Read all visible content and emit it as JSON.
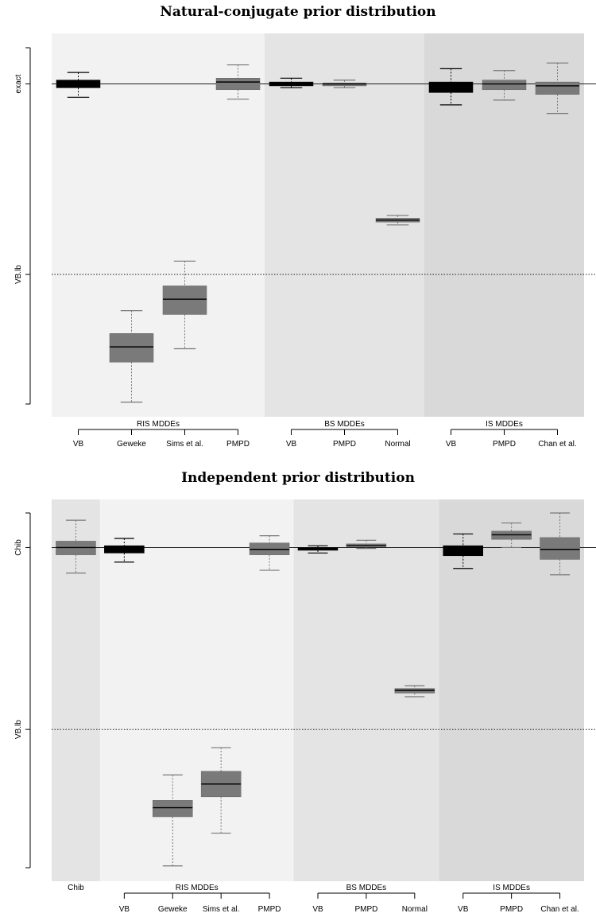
{
  "chart_data": [
    {
      "type": "boxplot",
      "title": "Natural-conjugate prior distribution",
      "y_ticks": [
        {
          "label": "exact",
          "value": 0,
          "line": "solid"
        },
        {
          "label": "VB.lb",
          "value": -1,
          "line": "dotted"
        }
      ],
      "ylim": [
        -1.68,
        0.19
      ],
      "panels": [
        {
          "shade": "#f2f2f2",
          "from": 0.5,
          "to": 4.5
        },
        {
          "shade": "#e4e4e4",
          "from": 4.5,
          "to": 7.5
        },
        {
          "shade": "#d9d9d9",
          "from": 7.5,
          "to": 10.5
        }
      ],
      "groups": [
        {
          "name": "RIS MDDEs",
          "from": 1,
          "to": 4
        },
        {
          "name": "BS MDDEs",
          "from": 5,
          "to": 7
        },
        {
          "name": "IS MDDEs",
          "from": 8,
          "to": 10
        }
      ],
      "categories": [
        "VB",
        "Geweke",
        "Sims et al.",
        "PMPD",
        "VB",
        "PMPD",
        "Normal",
        "VB",
        "PMPD",
        "Chan et al."
      ],
      "boxes": [
        {
          "low": -0.07,
          "q1": -0.02,
          "median": 0.0,
          "q3": 0.02,
          "high": 0.06,
          "color": "black"
        },
        {
          "low": -1.67,
          "q1": -1.46,
          "median": -1.38,
          "q3": -1.31,
          "high": -1.19,
          "color": "#777777"
        },
        {
          "low": -1.39,
          "q1": -1.21,
          "median": -1.13,
          "q3": -1.06,
          "high": -0.93,
          "color": "#777777"
        },
        {
          "low": -0.08,
          "q1": -0.03,
          "median": 0.01,
          "q3": 0.03,
          "high": 0.1,
          "color": "#777777"
        },
        {
          "low": -0.02,
          "q1": -0.01,
          "median": 0.0,
          "q3": 0.01,
          "high": 0.03,
          "color": "black"
        },
        {
          "low": -0.02,
          "q1": -0.01,
          "median": 0.0,
          "q3": 0.005,
          "high": 0.02,
          "color": "#777777"
        },
        {
          "low": -0.74,
          "q1": -0.725,
          "median": -0.715,
          "q3": -0.705,
          "high": -0.69,
          "color": "#777777"
        },
        {
          "low": -0.11,
          "q1": -0.045,
          "median": -0.01,
          "q3": 0.01,
          "high": 0.08,
          "color": "black"
        },
        {
          "low": -0.085,
          "q1": -0.03,
          "median": 0.0,
          "q3": 0.02,
          "high": 0.07,
          "color": "#777777"
        },
        {
          "low": -0.155,
          "q1": -0.055,
          "median": -0.01,
          "q3": 0.01,
          "high": 0.11,
          "color": "#777777"
        }
      ]
    },
    {
      "type": "boxplot",
      "title": "Independent prior distribution",
      "y_ticks": [
        {
          "label": "Chib",
          "value": 0,
          "line": "solid"
        },
        {
          "label": "VB.lb",
          "value": -1,
          "line": "dotted"
        }
      ],
      "ylim": [
        -1.76,
        0.19
      ],
      "panels": [
        {
          "shade": "#e4e4e4",
          "from": 0.5,
          "to": 1.5
        },
        {
          "shade": "#f2f2f2",
          "from": 1.5,
          "to": 5.5
        },
        {
          "shade": "#e4e4e4",
          "from": 5.5,
          "to": 8.5
        },
        {
          "shade": "#d9d9d9",
          "from": 8.5,
          "to": 11.5
        }
      ],
      "groups": [
        {
          "name": "Chib",
          "from": 1,
          "to": 1,
          "bracket": false
        },
        {
          "name": "RIS MDDEs",
          "from": 2,
          "to": 5
        },
        {
          "name": "BS MDDEs",
          "from": 6,
          "to": 8
        },
        {
          "name": "IS MDDEs",
          "from": 9,
          "to": 11
        }
      ],
      "categories": [
        "",
        "VB",
        "Geweke",
        "Sims et al.",
        "PMPD",
        "VB",
        "PMPD",
        "Normal",
        "VB",
        "PMPD",
        "Chan et al."
      ],
      "boxes": [
        {
          "low": -0.14,
          "q1": -0.04,
          "median": 0.0,
          "q3": 0.035,
          "high": 0.15,
          "color": "#777777"
        },
        {
          "low": -0.08,
          "q1": -0.03,
          "median": -0.01,
          "q3": 0.01,
          "high": 0.05,
          "color": "black"
        },
        {
          "low": -1.75,
          "q1": -1.48,
          "median": -1.43,
          "q3": -1.39,
          "high": -1.25,
          "color": "#777777"
        },
        {
          "low": -1.57,
          "q1": -1.37,
          "median": -1.3,
          "q3": -1.23,
          "high": -1.1,
          "color": "#777777"
        },
        {
          "low": -0.125,
          "q1": -0.04,
          "median": -0.01,
          "q3": 0.025,
          "high": 0.065,
          "color": "#777777"
        },
        {
          "low": -0.03,
          "q1": -0.015,
          "median": -0.005,
          "q3": 0.0,
          "high": 0.01,
          "color": "black"
        },
        {
          "low": -0.005,
          "q1": 0.005,
          "median": 0.01,
          "q3": 0.02,
          "high": 0.04,
          "color": "#777777"
        },
        {
          "low": -0.82,
          "q1": -0.8,
          "median": -0.785,
          "q3": -0.775,
          "high": -0.76,
          "color": "#777777"
        },
        {
          "low": -0.115,
          "q1": -0.045,
          "median": -0.005,
          "q3": 0.01,
          "high": 0.075,
          "color": "black"
        },
        {
          "low": 0.0,
          "q1": 0.045,
          "median": 0.07,
          "q3": 0.09,
          "high": 0.135,
          "color": "#777777"
        },
        {
          "low": -0.15,
          "q1": -0.065,
          "median": -0.01,
          "q3": 0.055,
          "high": 0.19,
          "color": "#777777"
        }
      ]
    }
  ]
}
